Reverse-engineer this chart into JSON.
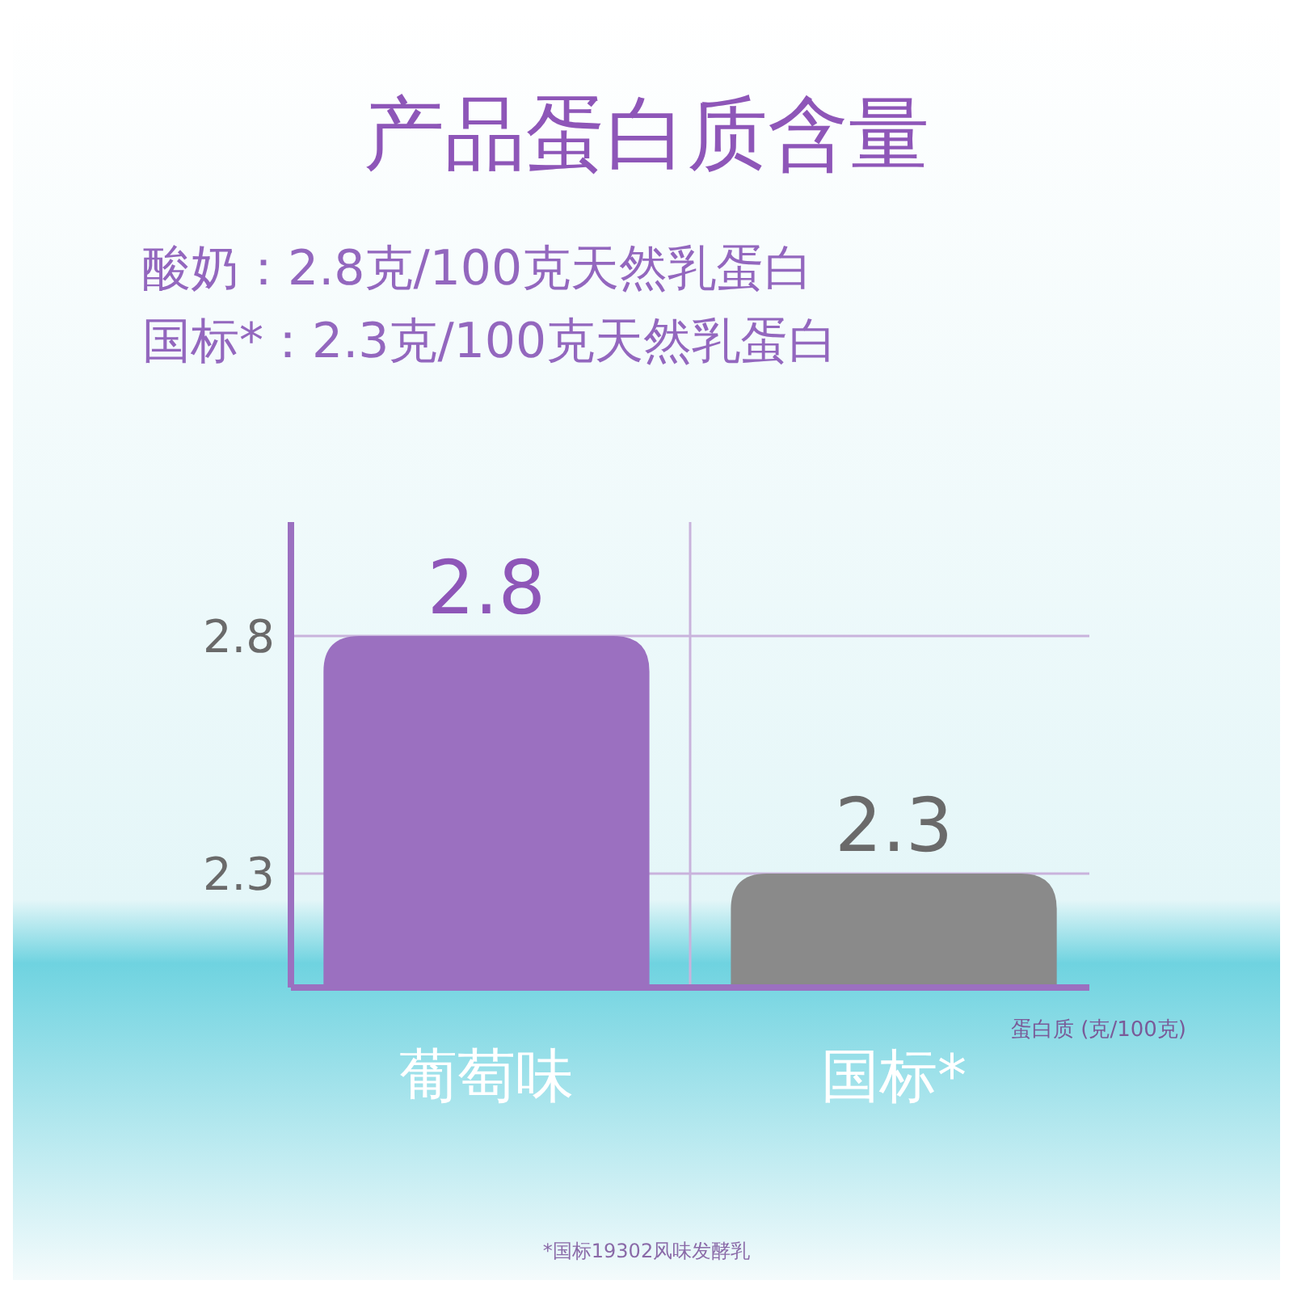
{
  "chart_data": {
    "type": "bar",
    "title": "产品蛋白质含量",
    "annotations": [
      "酸奶：2.8克/100克天然乳蛋白",
      "国标*：2.3克/100克天然乳蛋白",
      "*国标19302风味发酵乳"
    ],
    "categories": [
      "葡萄味",
      "国标*"
    ],
    "values": [
      2.8,
      2.3
    ],
    "colors": [
      "#9b70c0",
      "#8a8a8a"
    ],
    "xlabel": "蛋白质 (克/100克)",
    "ylim": [
      2.06,
      3.04
    ],
    "yticks": [
      2.3,
      2.8
    ],
    "grid": true,
    "data_labels": true
  }
}
